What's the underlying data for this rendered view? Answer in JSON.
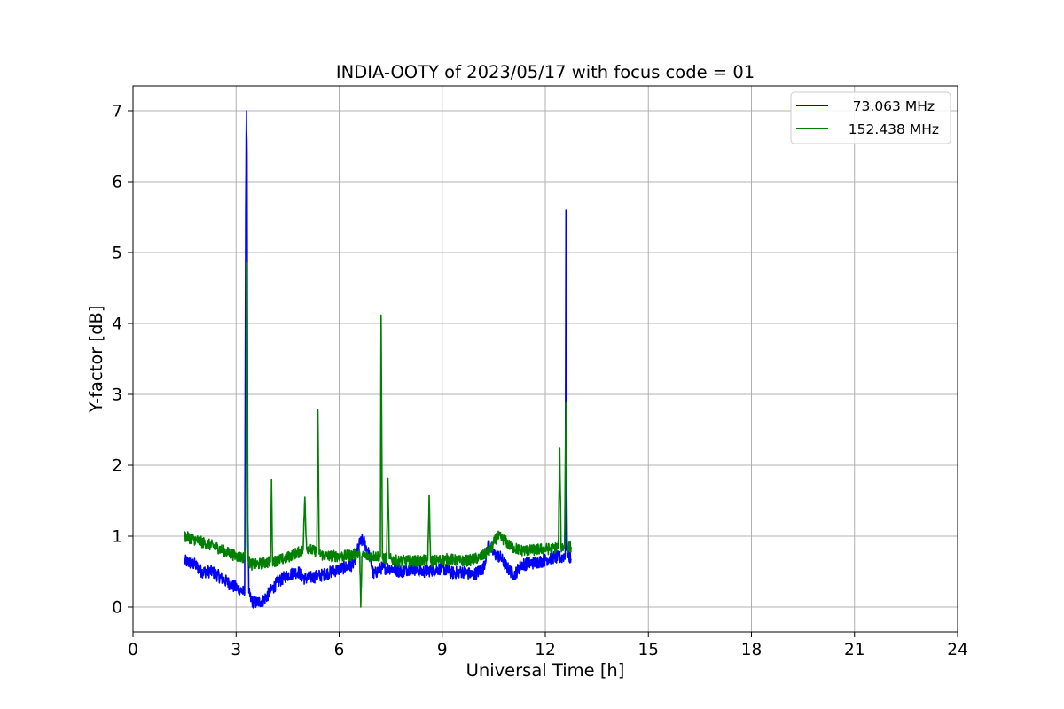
{
  "chart_data": {
    "type": "line",
    "title": "INDIA-OOTY of 2023/05/17 with focus code = 01",
    "xlabel": "Universal Time [h]",
    "ylabel": "Y-factor [dB]",
    "xlim": [
      0,
      24
    ],
    "ylim": [
      -0.35,
      7.35
    ],
    "xticks": [
      0,
      3,
      6,
      9,
      12,
      15,
      18,
      21,
      24
    ],
    "yticks": [
      0,
      1,
      2,
      3,
      4,
      5,
      6,
      7
    ],
    "grid": true,
    "legend_position": "top-right",
    "series": [
      {
        "name": "73.063 MHz",
        "color": "#0000ff",
        "x": [
          1.5,
          1.8,
          2.0,
          2.3,
          2.6,
          2.9,
          3.1,
          3.25,
          3.28,
          3.3,
          3.32,
          3.34,
          3.37,
          3.45,
          3.6,
          3.8,
          4.0,
          4.2,
          4.5,
          4.8,
          5.0,
          5.2,
          5.5,
          5.8,
          6.1,
          6.4,
          6.6,
          6.7,
          6.9,
          7.0,
          7.2,
          7.5,
          7.8,
          8.1,
          8.4,
          8.7,
          9.0,
          9.3,
          9.6,
          9.9,
          10.2,
          10.35,
          10.5,
          10.7,
          10.9,
          11.1,
          11.3,
          11.6,
          11.9,
          12.2,
          12.5,
          12.58,
          12.6,
          12.62,
          12.68,
          12.75
        ],
        "y": [
          0.65,
          0.6,
          0.5,
          0.5,
          0.4,
          0.3,
          0.25,
          0.2,
          5.6,
          7.0,
          6.4,
          1.2,
          0.2,
          0.08,
          0.06,
          0.1,
          0.22,
          0.35,
          0.45,
          0.5,
          0.4,
          0.42,
          0.45,
          0.5,
          0.55,
          0.6,
          0.9,
          0.95,
          0.7,
          0.45,
          0.55,
          0.55,
          0.5,
          0.55,
          0.5,
          0.52,
          0.55,
          0.48,
          0.5,
          0.45,
          0.55,
          0.9,
          0.75,
          0.7,
          0.55,
          0.45,
          0.6,
          0.62,
          0.65,
          0.7,
          0.7,
          0.75,
          5.6,
          0.8,
          0.72,
          0.68
        ],
        "noise": 0.09
      },
      {
        "name": "152.438 MHz",
        "color": "#008000",
        "x": [
          1.5,
          1.8,
          2.1,
          2.4,
          2.7,
          3.0,
          3.2,
          3.28,
          3.32,
          3.34,
          3.36,
          3.45,
          3.6,
          3.8,
          4.0,
          4.03,
          4.06,
          4.1,
          4.4,
          4.7,
          4.95,
          5.0,
          5.05,
          5.2,
          5.35,
          5.38,
          5.42,
          5.6,
          5.9,
          6.2,
          6.5,
          6.6,
          6.63,
          6.66,
          6.8,
          7.1,
          7.2,
          7.22,
          7.26,
          7.38,
          7.42,
          7.46,
          7.7,
          8.0,
          8.3,
          8.58,
          8.62,
          8.66,
          8.9,
          9.2,
          9.5,
          9.8,
          10.1,
          10.4,
          10.6,
          10.8,
          11.0,
          11.3,
          11.6,
          11.9,
          12.2,
          12.38,
          12.42,
          12.46,
          12.56,
          12.6,
          12.64,
          12.75
        ],
        "y": [
          1.0,
          0.95,
          0.9,
          0.85,
          0.78,
          0.72,
          0.7,
          0.72,
          4.85,
          0.9,
          0.65,
          0.6,
          0.6,
          0.62,
          0.64,
          1.8,
          0.66,
          0.65,
          0.68,
          0.75,
          0.8,
          1.55,
          0.85,
          0.8,
          0.78,
          2.78,
          0.75,
          0.72,
          0.72,
          0.72,
          0.75,
          0.75,
          0.0,
          0.72,
          0.72,
          0.72,
          0.72,
          4.12,
          0.7,
          0.68,
          1.82,
          0.68,
          0.65,
          0.65,
          0.65,
          0.66,
          1.58,
          0.65,
          0.66,
          0.68,
          0.65,
          0.66,
          0.7,
          0.8,
          1.0,
          0.95,
          0.85,
          0.8,
          0.8,
          0.82,
          0.82,
          0.85,
          2.25,
          0.85,
          0.85,
          2.88,
          0.85,
          0.85
        ],
        "noise": 0.08
      }
    ]
  }
}
